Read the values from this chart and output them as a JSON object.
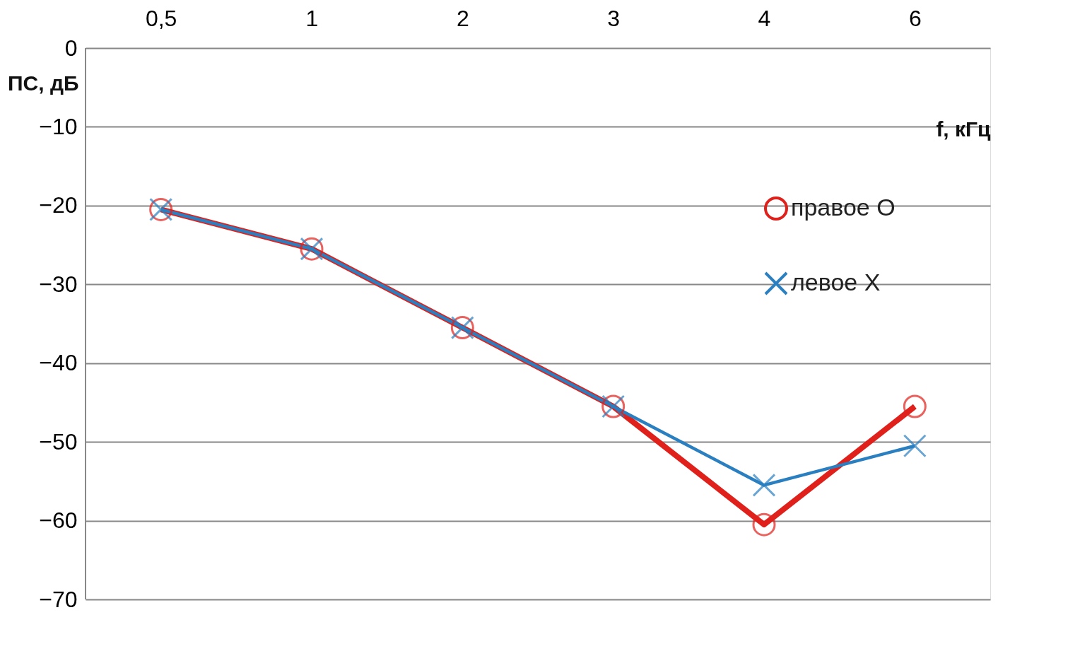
{
  "chart_data": {
    "type": "line",
    "xlabel": "f, кГц",
    "ylabel": "ПС, дБ",
    "categories": [
      "0,5",
      "1",
      "2",
      "3",
      "4",
      "6"
    ],
    "series": [
      {
        "name": "правое  О",
        "color": "#e0201b",
        "marker": "circle",
        "values": [
          -20.5,
          -25.5,
          -35.5,
          -45.5,
          -60.5,
          -45.5
        ]
      },
      {
        "name": "левое    Х",
        "color": "#2a7fc1",
        "marker": "cross",
        "values": [
          -20.5,
          -25.5,
          -35.5,
          -45.5,
          -55.5,
          -50.5
        ]
      }
    ],
    "ylim": [
      -70,
      0
    ],
    "yticks": [
      0,
      -10,
      -20,
      -30,
      -40,
      -50,
      -60,
      -70
    ],
    "grid": "y",
    "legend": "right",
    "line_style": "solid"
  }
}
